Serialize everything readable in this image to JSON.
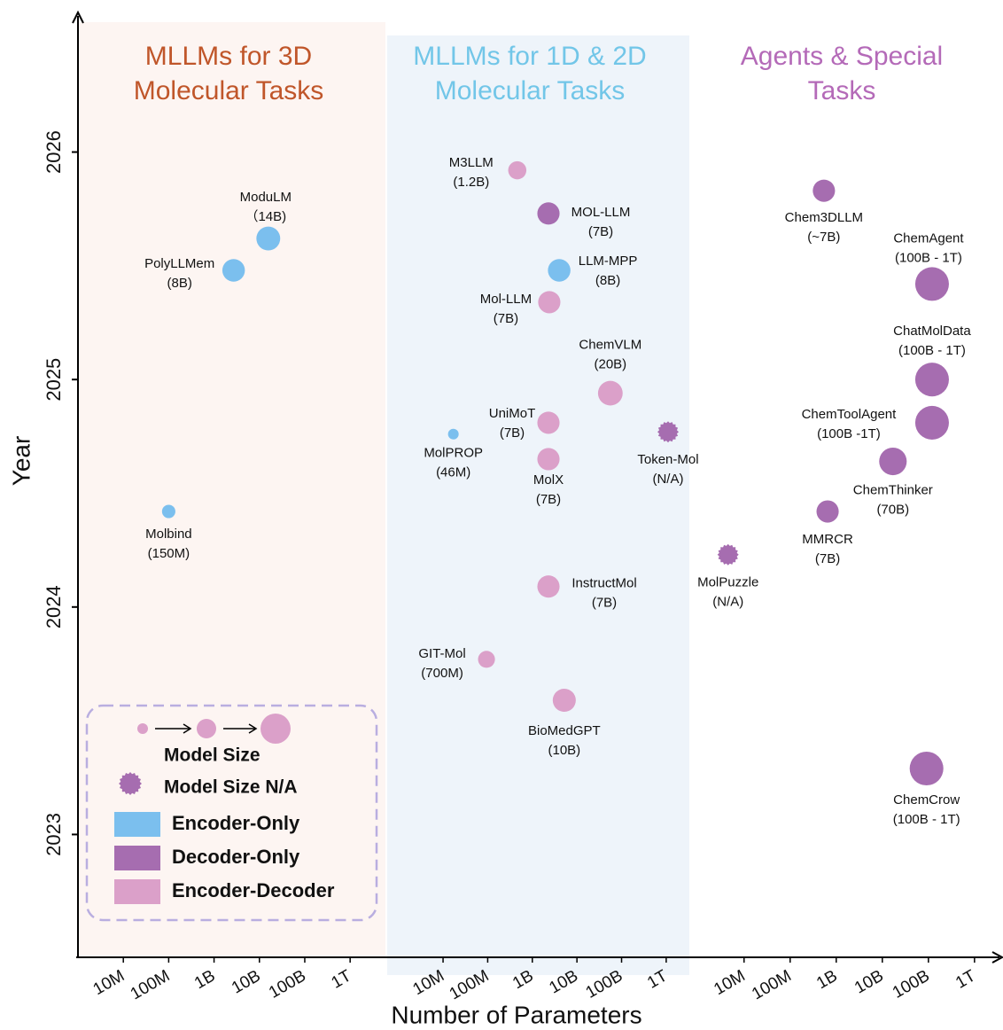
{
  "chart_data": {
    "type": "bubble",
    "ylabel": "Year",
    "xlabel": "Number of Parameters",
    "ylim": [
      2022.46,
      2026.61
    ],
    "yticks": [
      2023,
      2024,
      2025,
      2026
    ],
    "panels": [
      {
        "title": [
          "MLLMs for 3D",
          "Molecular Tasks"
        ],
        "title_color": "#c0562a",
        "background": "#fdf5f2",
        "xscale": "log",
        "xlim": [
          1000000,
          6000000000000
        ],
        "xticks": [
          {
            "value": 10000000,
            "label": "10M"
          },
          {
            "value": 100000000,
            "label": "100M"
          },
          {
            "value": 1000000000,
            "label": "1B"
          },
          {
            "value": 10000000000,
            "label": "10B"
          },
          {
            "value": 100000000000,
            "label": "100B"
          },
          {
            "value": 1000000000000,
            "label": "1T"
          }
        ],
        "points": [
          {
            "name": "ModuLM",
            "size_label": "（14B)",
            "x": 15700000000,
            "y": 2025.62,
            "size": 14000000000,
            "color": "#7bbfee"
          },
          {
            "name": "PolyLLMem",
            "size_label": "(8B)",
            "x": 2700000000,
            "y": 2025.48,
            "size": 8000000000,
            "color": "#7bbfee"
          },
          {
            "name": "Molbind",
            "size_label": "(150M)",
            "x": 100000000,
            "y": 2024.42,
            "size": 150000000,
            "color": "#7bbfee"
          }
        ]
      },
      {
        "title": [
          "MLLMs for 1D & 2D",
          "Molecular Tasks"
        ],
        "title_color": "#72c6e8",
        "background": "#eef4fa",
        "xscale": "log",
        "xlim": [
          560000,
          3300000000000
        ],
        "xticks": [
          {
            "value": 10000000,
            "label": "10M"
          },
          {
            "value": 100000000,
            "label": "100M"
          },
          {
            "value": 1000000000,
            "label": "1B"
          },
          {
            "value": 10000000000,
            "label": "10B"
          },
          {
            "value": 100000000000,
            "label": "100B"
          },
          {
            "value": 1000000000000,
            "label": "1T"
          }
        ],
        "points": [
          {
            "name": "M3LLM",
            "size_label": "(1.2B)",
            "x": 460000000,
            "y": 2025.92,
            "size": 1200000000,
            "color": "#dba0c9"
          },
          {
            "name": "MOL-LLM",
            "size_label": "(7B)",
            "x": 2300000000,
            "y": 2025.73,
            "size": 7000000000,
            "color": "#a66db0"
          },
          {
            "name": "LLM-MPP",
            "size_label": "(8B)",
            "x": 4000000000,
            "y": 2025.48,
            "size": 8000000000,
            "color": "#7bbfee"
          },
          {
            "name": "Mol-LLM",
            "size_label": "(7B)",
            "x": 2400000000,
            "y": 2025.34,
            "size": 7000000000,
            "color": "#dba0c9"
          },
          {
            "name": "ChemVLM",
            "size_label": "(20B)",
            "x": 56000000000,
            "y": 2024.94,
            "size": 20000000000,
            "color": "#dba0c9"
          },
          {
            "name": "UniMoT",
            "size_label": "(7B)",
            "x": 2300000000,
            "y": 2024.81,
            "size": 7000000000,
            "color": "#dba0c9"
          },
          {
            "name": "MolPROP",
            "size_label": "(46M)",
            "x": 17000000,
            "y": 2024.76,
            "size": 46000000,
            "color": "#7bbfee"
          },
          {
            "name": "Token-Mol",
            "size_label": "(N/A)",
            "x": 1100000000000,
            "y": 2024.77,
            "size": null,
            "color": "#a66db0"
          },
          {
            "name": "MolX",
            "size_label": "(7B)",
            "x": 2300000000,
            "y": 2024.65,
            "size": 7000000000,
            "color": "#dba0c9"
          },
          {
            "name": "InstructMol",
            "size_label": "(7B)",
            "x": 2300000000,
            "y": 2024.09,
            "size": 7000000000,
            "color": "#dba0c9"
          },
          {
            "name": "GIT-Mol",
            "size_label": "(700M)",
            "x": 94000000,
            "y": 2023.77,
            "size": 700000000,
            "color": "#dba0c9"
          },
          {
            "name": "BioMedGPT",
            "size_label": "(10B)",
            "x": 5200000000,
            "y": 2023.59,
            "size": 10000000000,
            "color": "#dba0c9"
          }
        ]
      },
      {
        "title": [
          "Agents & Special",
          "Tasks"
        ],
        "title_color": "#b46ab8",
        "background": "#ffffff",
        "xscale": "log",
        "xlim": [
          650000,
          3800000000000
        ],
        "xticks": [
          {
            "value": 10000000,
            "label": "10M"
          },
          {
            "value": 100000000,
            "label": "100M"
          },
          {
            "value": 1000000000,
            "label": "1B"
          },
          {
            "value": 10000000000,
            "label": "10B"
          },
          {
            "value": 100000000000,
            "label": "100B"
          },
          {
            "value": 1000000000000,
            "label": "1T"
          }
        ],
        "points": [
          {
            "name": "Chem3DLLM",
            "size_label": "(~7B)",
            "x": 540000000,
            "y": 2025.83,
            "size": 7000000000,
            "color": "#a66db0"
          },
          {
            "name": "ChemAgent",
            "size_label": "(100B - 1T)",
            "x": 120000000000,
            "y": 2025.42,
            "size": [
              100000000000,
              1000000000000
            ],
            "color": "#a66db0"
          },
          {
            "name": "ChatMolData",
            "size_label": "(100B - 1T)",
            "x": 120000000000,
            "y": 2025.0,
            "size": [
              100000000000,
              1000000000000
            ],
            "color": "#a66db0"
          },
          {
            "name": "ChemToolAgent",
            "size_label": "(100B -1T)",
            "x": 120000000000,
            "y": 2024.81,
            "size": [
              100000000000,
              1000000000000
            ],
            "color": "#a66db0"
          },
          {
            "name": "ChemThinker",
            "size_label": "(70B)",
            "x": 17000000000,
            "y": 2024.64,
            "size": 70000000000,
            "color": "#a66db0"
          },
          {
            "name": "MMRCR",
            "size_label": "(7B)",
            "x": 650000000,
            "y": 2024.42,
            "size": 7000000000,
            "color": "#a66db0"
          },
          {
            "name": "MolPuzzle",
            "size_label": "(N/A)",
            "x": 4500000,
            "y": 2024.23,
            "size": null,
            "color": "#a66db0"
          },
          {
            "name": "ChemCrow",
            "size_label": "(100B - 1T)",
            "x": 91000000000,
            "y": 2023.29,
            "size": [
              100000000000,
              1000000000000
            ],
            "color": "#a66db0"
          }
        ]
      }
    ],
    "legend": {
      "size_label": "Model Size",
      "na_label": "Model Size N/A",
      "na_color": "#a66db0",
      "size_color": "#dba0c9",
      "kinds": [
        {
          "name": "Encoder-Only",
          "color": "#7bbfee"
        },
        {
          "name": "Decoder-Only",
          "color": "#a66db0"
        },
        {
          "name": "Encoder-Decoder",
          "color": "#dba0c9"
        }
      ]
    }
  }
}
